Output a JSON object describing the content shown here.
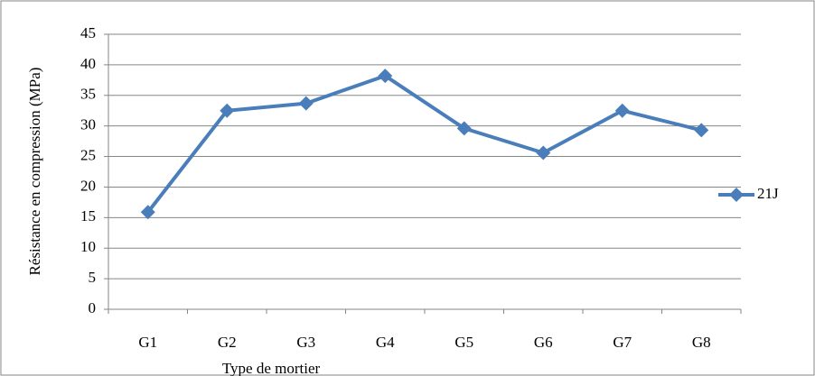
{
  "chart_data": {
    "type": "line",
    "x_label": "Type de mortier",
    "y_label": "Résistance en compression (MPa)",
    "categories": [
      "G1",
      "G2",
      "G3",
      "G4",
      "G5",
      "G6",
      "G7",
      "G8"
    ],
    "series": [
      {
        "name": "21J",
        "color": "#4a7ebb",
        "values": [
          15.9,
          32.5,
          33.7,
          38.2,
          29.6,
          25.6,
          32.5,
          29.3
        ]
      }
    ],
    "ylim": [
      0,
      45
    ],
    "yticks": [
      0,
      5,
      10,
      15,
      20,
      25,
      30,
      35,
      40,
      45
    ],
    "grid": true,
    "legend": "right"
  }
}
